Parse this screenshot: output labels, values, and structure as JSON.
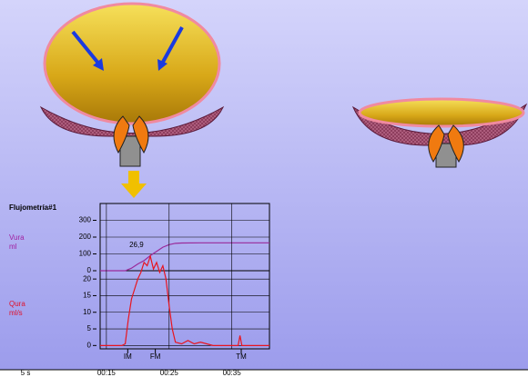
{
  "chart_data": [
    {
      "type": "line",
      "title": "Flujometría#1",
      "ylabel": [
        "Vura",
        "ml"
      ],
      "label_color": "#a020a0",
      "x": [
        14,
        18,
        19,
        20,
        21,
        22,
        23,
        24,
        25,
        26,
        27,
        30,
        41
      ],
      "series": [
        {
          "name": "Vura",
          "color": "#9a2a9a",
          "values": [
            0,
            0,
            15,
            40,
            60,
            90,
            115,
            140,
            155,
            163,
            165,
            166,
            166
          ]
        }
      ],
      "xlim": [
        14,
        41
      ],
      "ylim": [
        0,
        400
      ],
      "yticks": [
        0,
        100,
        200,
        300
      ]
    },
    {
      "type": "line",
      "ylabel": [
        "Qura",
        "ml/s"
      ],
      "label_color": "#e0102a",
      "x": [
        14,
        17.5,
        18,
        18.5,
        19,
        19.5,
        20,
        20.5,
        21,
        21.5,
        22,
        22.5,
        23,
        23.5,
        24,
        24.5,
        25,
        25.5,
        26,
        27,
        28,
        29,
        30,
        31,
        32,
        36,
        36.3,
        36.6,
        37,
        41
      ],
      "series": [
        {
          "name": "Qura",
          "color": "#e8141e",
          "values": [
            0,
            0,
            0.5,
            8,
            14,
            17,
            20,
            22,
            25,
            24,
            26.9,
            23,
            25,
            22,
            24,
            20,
            12,
            5,
            1,
            0.5,
            1.5,
            0.5,
            1,
            0.5,
            0,
            0,
            3,
            0,
            0,
            0
          ]
        }
      ],
      "peak": {
        "value": 26.9,
        "label": "26,9",
        "x": 21.5
      },
      "markers": [
        {
          "label": "IM",
          "x": 18.4
        },
        {
          "label": "FM",
          "x": 22.8
        },
        {
          "label": "TM",
          "x": 36.5
        }
      ],
      "xlim": [
        14,
        41
      ],
      "ylim": [
        -1,
        22.5
      ],
      "yticks": [
        0,
        5,
        10,
        15,
        20
      ],
      "xticks": [
        {
          "value": 15,
          "label": "00:15"
        },
        {
          "value": 25,
          "label": "00:25"
        },
        {
          "value": 35,
          "label": "00:35"
        }
      ],
      "x_scale_label": "5 s"
    }
  ]
}
